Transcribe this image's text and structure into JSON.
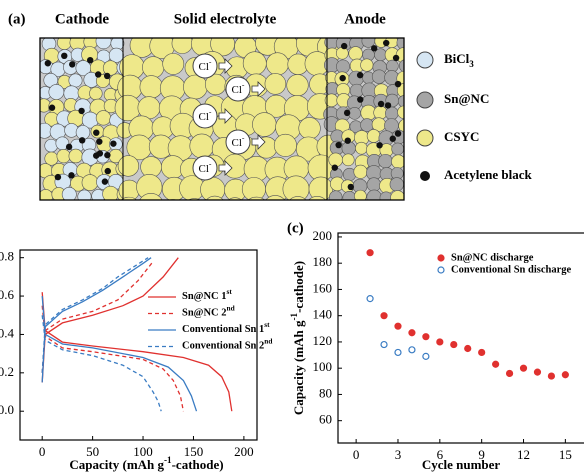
{
  "diagram": {
    "panel_label": "(a)",
    "regions": [
      "Cathode",
      "Solid electrolyte",
      "Anode"
    ],
    "ions": [
      "Cl-",
      "Cl-",
      "Cl-",
      "Cl-",
      "Cl-"
    ],
    "legend": [
      "BiCl3",
      "Sn@NC",
      "CSYC",
      "Acetylene black"
    ]
  },
  "chart_data": [
    {
      "type": "line",
      "xlabel": "Capacity (mAh g-1-cathode)",
      "legend": "upper right",
      "xlim": [
        -22,
        213
      ],
      "ylim": [
        -0.15,
        0.84
      ],
      "xticks": [
        0,
        50,
        100,
        150,
        200
      ],
      "yticks": [
        {
          "value": 0,
          "label": "0.0"
        },
        0.2,
        0.4,
        0.6,
        0.8
      ],
      "series": [
        {
          "name": "Sn@NC 1st",
          "color": "#e0312f",
          "dash": false,
          "x": [
            0,
            3,
            20,
            50,
            100,
            140,
            165,
            178,
            185,
            188,
            null,
            0,
            3,
            20,
            50,
            80,
            100,
            120,
            135
          ],
          "values": [
            0.62,
            0.42,
            0.36,
            0.34,
            0.31,
            0.28,
            0.24,
            0.18,
            0.1,
            0.0,
            null,
            0.15,
            0.4,
            0.46,
            0.5,
            0.55,
            0.6,
            0.7,
            0.8
          ]
        },
        {
          "name": "Sn@NC 2nd",
          "color": "#e0312f",
          "dash": true,
          "x": [
            0,
            3,
            20,
            50,
            100,
            120,
            130,
            137,
            140,
            null,
            0,
            3,
            20,
            50,
            75,
            95,
            110
          ],
          "values": [
            0.55,
            0.39,
            0.33,
            0.31,
            0.27,
            0.22,
            0.16,
            0.08,
            0.0,
            null,
            0.2,
            0.42,
            0.48,
            0.52,
            0.58,
            0.68,
            0.78
          ]
        },
        {
          "name": "Conventional Sn 1st",
          "color": "#3a7cc3",
          "dash": false,
          "x": [
            0,
            3,
            20,
            50,
            100,
            125,
            140,
            148,
            153,
            null,
            0,
            3,
            20,
            40,
            60,
            80,
            100,
            108
          ],
          "values": [
            0.6,
            0.4,
            0.35,
            0.33,
            0.28,
            0.23,
            0.16,
            0.08,
            0.0,
            null,
            0.15,
            0.44,
            0.52,
            0.57,
            0.63,
            0.7,
            0.77,
            0.8
          ]
        },
        {
          "name": "Conventional Sn 2nd",
          "color": "#3a7cc3",
          "dash": true,
          "x": [
            0,
            3,
            20,
            50,
            80,
            100,
            110,
            115,
            118,
            null,
            0,
            3,
            20,
            40,
            60,
            75,
            90,
            105
          ],
          "values": [
            0.5,
            0.37,
            0.32,
            0.29,
            0.24,
            0.18,
            0.1,
            0.05,
            0.0,
            null,
            0.2,
            0.45,
            0.53,
            0.58,
            0.64,
            0.7,
            0.75,
            0.8
          ]
        }
      ]
    },
    {
      "type": "scatter",
      "panel_label": "(c)",
      "xlabel": "Cycle number",
      "ylabel": "Capacity (mAh g-1-cathode)",
      "legend": "upper right",
      "xlim": [
        -1.3,
        18.2
      ],
      "ylim": [
        43,
        203
      ],
      "xticks": [
        0,
        3,
        6,
        9,
        12,
        15
      ],
      "yticks": [
        60,
        80,
        100,
        120,
        140,
        160,
        180,
        200
      ],
      "series": [
        {
          "name": "Sn@NC discharge",
          "color": "#e0312f",
          "marker": "filled",
          "x": [
            1,
            2,
            3,
            4,
            5,
            6,
            7,
            8,
            9,
            10,
            11,
            12,
            13,
            14,
            15
          ],
          "values": [
            188,
            140,
            132,
            127,
            124,
            120,
            118,
            115,
            112,
            103,
            96,
            100,
            97,
            94,
            95
          ]
        },
        {
          "name": "Conventional Sn discharge",
          "color": "#3a7cc3",
          "marker": "open",
          "x": [
            1,
            2,
            3,
            4,
            5
          ],
          "values": [
            153,
            118,
            112,
            114,
            109
          ]
        }
      ]
    }
  ]
}
